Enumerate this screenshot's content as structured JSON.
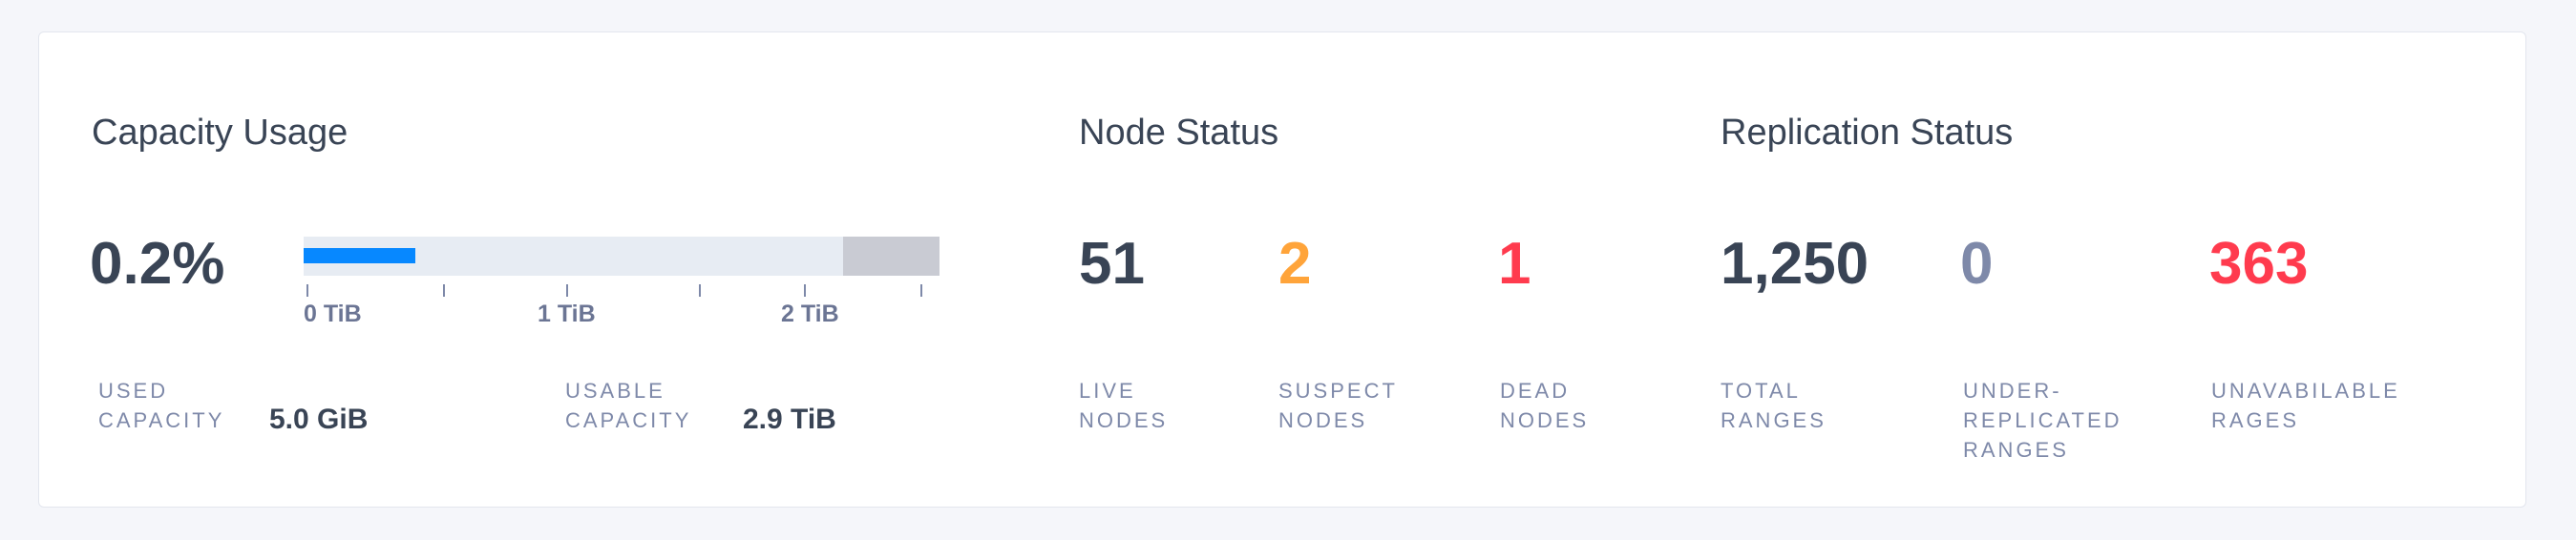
{
  "capacity": {
    "title": "Capacity Usage",
    "percent": "0.2%",
    "usage_fraction": 0.002,
    "axis_labels": [
      "0 TiB",
      "1 TiB",
      "2 TiB"
    ],
    "used_label": "USED\nCAPACITY",
    "used_value": "5.0 GiB",
    "usable_label": "USABLE\nCAPACITY",
    "usable_value": "2.9 TiB"
  },
  "nodes": {
    "title": "Node Status",
    "live": {
      "value": "51",
      "label": "LIVE\nNODES"
    },
    "suspect": {
      "value": "2",
      "label": "SUSPECT\nNODES"
    },
    "dead": {
      "value": "1",
      "label": "DEAD\nNODES"
    }
  },
  "replication": {
    "title": "Replication Status",
    "total": {
      "value": "1,250",
      "label": "TOTAL\nRANGES"
    },
    "under": {
      "value": "0",
      "label": "UNDER-\nREPLICATED\nRANGES"
    },
    "unavailable": {
      "value": "363",
      "label": "UNAVABILABLE\nRAGES"
    }
  },
  "colors": {
    "text": "#394455",
    "label": "#7e89a9",
    "warning": "#ffa43a",
    "danger": "#ff3b4e",
    "neutral": "#7e89a9",
    "bar_fill": "#0788ff",
    "bar_track": "#e7ecf3",
    "bar_reserved": "#c9cbd3"
  }
}
